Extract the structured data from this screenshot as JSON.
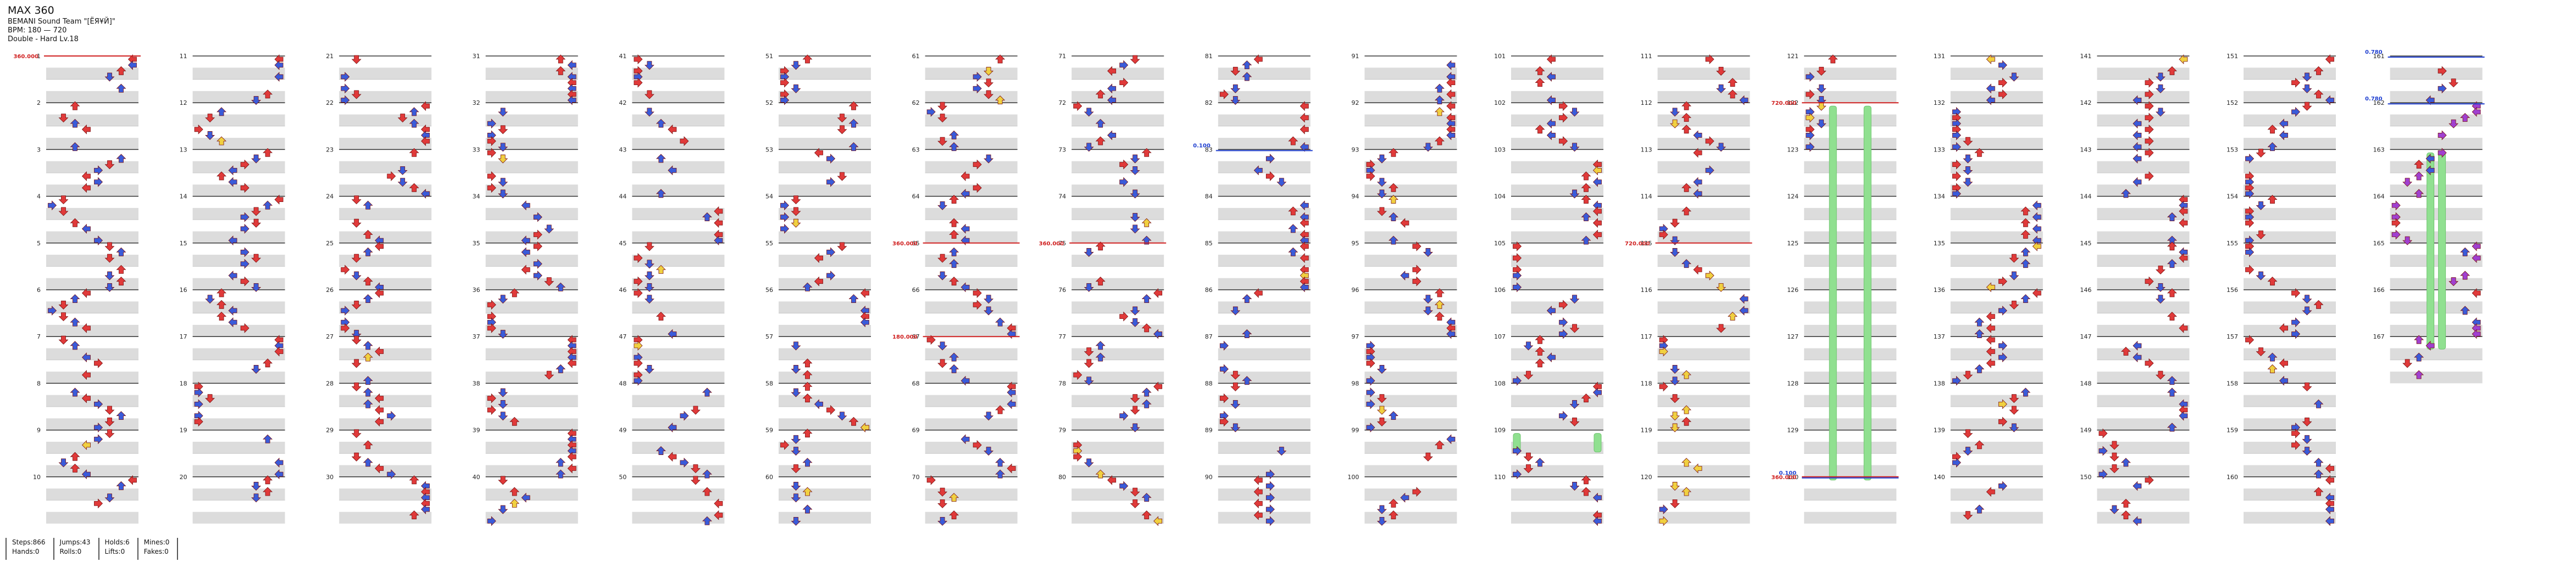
{
  "song": {
    "title": "MAX 360",
    "artist": "BEMANI Sound Team \"[ЁЯ¥Й]\"",
    "bpm": "BPM: 180 — 720",
    "difficulty": "Double - Hard Lv.18"
  },
  "stats": [
    {
      "line1": "Steps:866",
      "line2": "Hands:0"
    },
    {
      "line1": "Jumps:43",
      "line2": "Rolls:0"
    },
    {
      "line1": "Holds:6",
      "line2": "Lifts:0"
    },
    {
      "line1": "Mines:0",
      "line2": "Fakes:0"
    }
  ],
  "chart_data": {
    "type": "stepchart",
    "columns": 18,
    "measures_per_column": 10,
    "total_measures": 167,
    "lanes": 8,
    "colors": {
      "quarter": "#e03a3a",
      "eighth": "#3a5bd9",
      "sixteenth": "#f0d040",
      "twentyfourth": "#a040d0",
      "hold": "#90e090",
      "bpm": "#d02020",
      "scroll": "#2040d0"
    },
    "bpm_changes": [
      {
        "measure": 1,
        "label": "360.000"
      },
      {
        "measure": 65,
        "label": "360.000"
      },
      {
        "measure": 67,
        "label": "180.000"
      },
      {
        "measure": 75,
        "label": "360.000"
      },
      {
        "measure": 115,
        "label": "720.000"
      },
      {
        "measure": 122,
        "label": "720.000"
      },
      {
        "measure": 130,
        "label": "360.000"
      }
    ],
    "scroll_changes": [
      {
        "measure": 83,
        "label": "0.100"
      },
      {
        "measure": 161,
        "label": "0.780"
      },
      {
        "measure": 162,
        "label": "0.780"
      },
      {
        "measure": 130,
        "label": "0.100"
      }
    ],
    "holds": [
      {
        "measure": 109,
        "lane": 0,
        "length": 0.4
      },
      {
        "measure": 109,
        "lane": 7,
        "length": 0.4
      },
      {
        "measure": 122,
        "lane": 2,
        "length": 8.0
      },
      {
        "measure": 122,
        "lane": 5,
        "length": 8.0
      },
      {
        "measure": 163,
        "lane": 3,
        "length": 4.2
      },
      {
        "measure": 163,
        "lane": 4,
        "length": 4.2
      }
    ]
  }
}
